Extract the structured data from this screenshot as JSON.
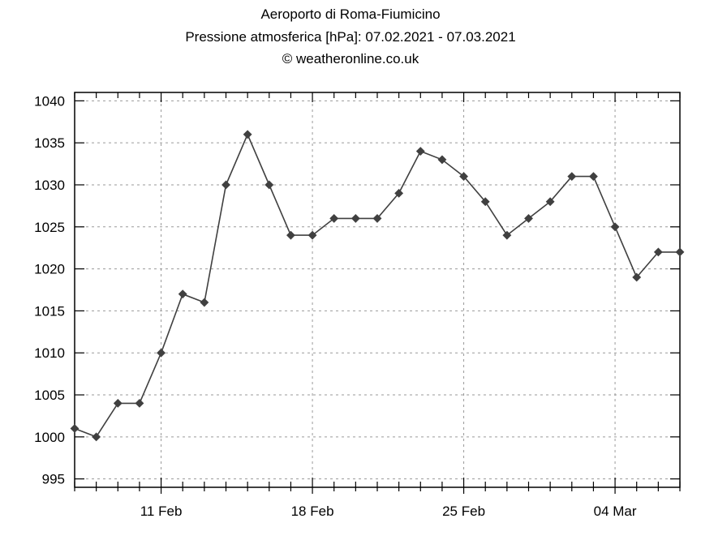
{
  "header": {
    "station": "Aeroporto di Roma-Fiumicino",
    "subtitle": "Pressione atmosferica [hPa]: 07.02.2021 - 07.03.2021",
    "credit": "© weatheronline.co.uk"
  },
  "chart_data": {
    "type": "line",
    "title": "Aeroporto di Roma-Fiumicino",
    "subtitle": "Pressione atmosferica [hPa]: 07.02.2021 - 07.03.2021",
    "credit": "© weatheronline.co.uk",
    "xlabel": "",
    "ylabel": "",
    "ylim": [
      994,
      1041
    ],
    "xlim": [
      "2021-02-07",
      "2021-03-07"
    ],
    "y_ticks": [
      995,
      1000,
      1005,
      1010,
      1015,
      1020,
      1025,
      1030,
      1035,
      1040
    ],
    "x_ticks": [
      {
        "date": "2021-02-11",
        "label": "11 Feb"
      },
      {
        "date": "2021-02-18",
        "label": "18 Feb"
      },
      {
        "date": "2021-02-25",
        "label": "25 Feb"
      },
      {
        "date": "2021-03-04",
        "label": "04 Mar"
      }
    ],
    "grid": true,
    "line_color": "#404040",
    "series": [
      {
        "x": [
          "2021-02-07",
          "2021-02-08",
          "2021-02-09",
          "2021-02-10",
          "2021-02-11",
          "2021-02-12",
          "2021-02-13",
          "2021-02-14",
          "2021-02-15",
          "2021-02-16",
          "2021-02-17",
          "2021-02-18",
          "2021-02-19",
          "2021-02-20",
          "2021-02-21",
          "2021-02-22",
          "2021-02-23",
          "2021-02-24",
          "2021-02-25",
          "2021-02-26",
          "2021-02-27",
          "2021-02-28",
          "2021-03-01",
          "2021-03-02",
          "2021-03-03",
          "2021-03-04",
          "2021-03-05",
          "2021-03-06",
          "2021-03-07"
        ],
        "values": [
          1001,
          1000,
          1004,
          1004,
          1010,
          1017,
          1016,
          1030,
          1036,
          1030,
          1024,
          1024,
          1026,
          1026,
          1026,
          1029,
          1034,
          1033,
          1031,
          1028,
          1024,
          1026,
          1028,
          1031,
          1031,
          1025,
          1019,
          1022,
          1022
        ]
      }
    ]
  }
}
